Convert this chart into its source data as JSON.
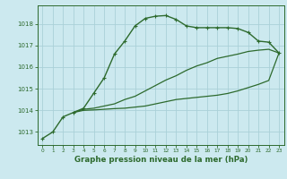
{
  "title": "Graphe pression niveau de la mer (hPa)",
  "bg_color": "#cce9ef",
  "grid_color": "#aad0d8",
  "line_color": "#2d6a2d",
  "xlim": [
    -0.5,
    23.5
  ],
  "ylim": [
    1012.4,
    1018.85
  ],
  "yticks": [
    1013,
    1014,
    1015,
    1016,
    1017,
    1018
  ],
  "xticks": [
    0,
    1,
    2,
    3,
    4,
    5,
    6,
    7,
    8,
    9,
    10,
    11,
    12,
    13,
    14,
    15,
    16,
    17,
    18,
    19,
    20,
    21,
    22,
    23
  ],
  "series": [
    {
      "x": [
        0,
        1,
        2,
        3,
        4,
        5,
        6,
        7,
        8,
        9,
        10,
        11,
        12,
        13,
        14,
        15,
        16,
        17,
        18,
        19,
        20,
        21,
        22,
        23
      ],
      "y": [
        1012.7,
        1013.0,
        1013.7,
        1013.9,
        1014.1,
        1014.8,
        1015.5,
        1016.6,
        1017.2,
        1017.9,
        1018.25,
        1018.35,
        1018.38,
        1018.2,
        1017.9,
        1017.82,
        1017.82,
        1017.82,
        1017.82,
        1017.78,
        1017.6,
        1017.2,
        1017.15,
        1016.65
      ],
      "marker": true,
      "lw": 1.0
    },
    {
      "x": [
        3,
        4,
        5,
        6,
        7,
        8,
        9,
        10,
        11,
        12,
        13,
        14,
        15,
        16,
        17,
        18,
        19,
        20,
        21,
        22,
        23
      ],
      "y": [
        1013.9,
        1014.05,
        1014.1,
        1014.2,
        1014.3,
        1014.5,
        1014.65,
        1014.9,
        1015.15,
        1015.4,
        1015.6,
        1015.85,
        1016.05,
        1016.2,
        1016.4,
        1016.5,
        1016.6,
        1016.72,
        1016.78,
        1016.82,
        1016.65
      ],
      "marker": false,
      "lw": 0.9
    },
    {
      "x": [
        3,
        4,
        5,
        6,
        7,
        8,
        9,
        10,
        11,
        12,
        13,
        14,
        15,
        16,
        17,
        18,
        19,
        20,
        21,
        22,
        23
      ],
      "y": [
        1013.9,
        1014.0,
        1014.02,
        1014.05,
        1014.08,
        1014.1,
        1014.15,
        1014.2,
        1014.3,
        1014.4,
        1014.5,
        1014.55,
        1014.6,
        1014.65,
        1014.7,
        1014.78,
        1014.9,
        1015.05,
        1015.2,
        1015.38,
        1016.65
      ],
      "marker": false,
      "lw": 0.9
    }
  ]
}
